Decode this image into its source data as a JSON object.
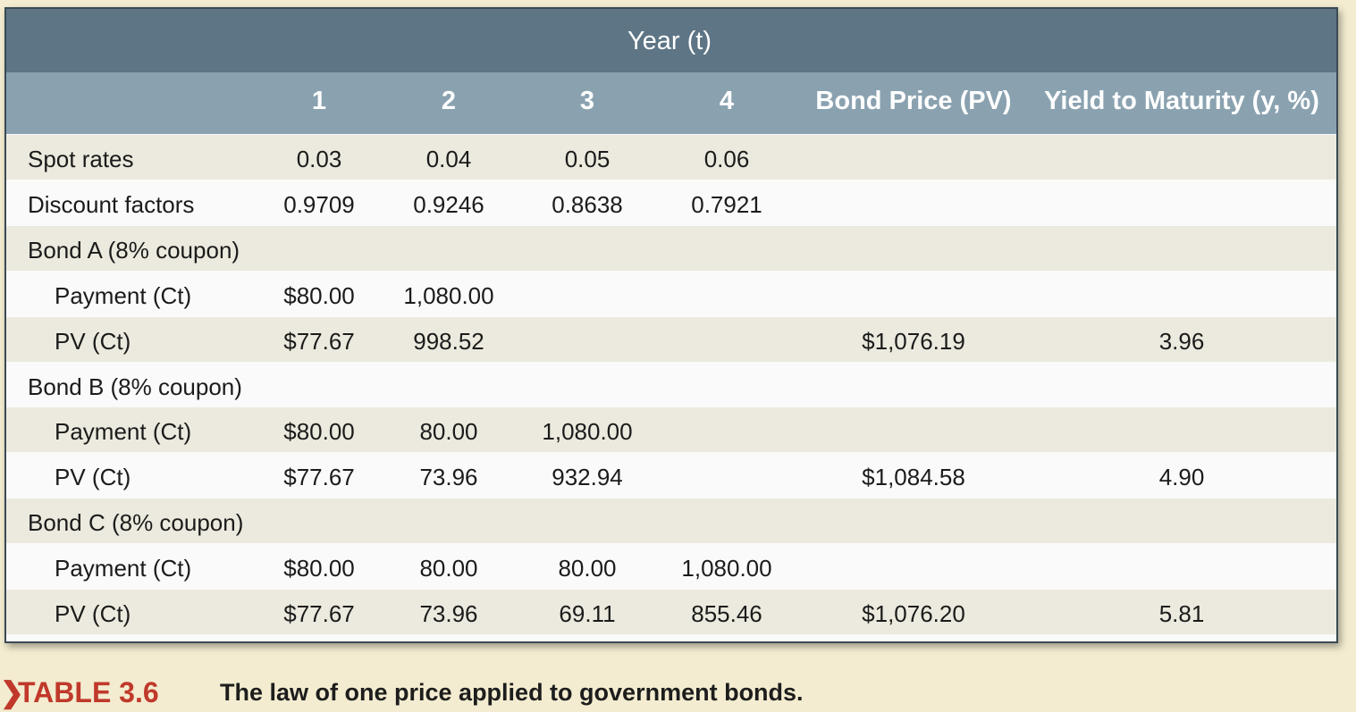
{
  "header": {
    "group_label": "Year (t)",
    "columns": [
      "1",
      "2",
      "3",
      "4",
      "Bond Price (PV)",
      "Yield to Maturity (y, %)"
    ]
  },
  "rows": [
    {
      "label": "Spot rates",
      "indent": false,
      "cells": [
        "0.03",
        "0.04",
        "0.05",
        "0.06",
        "",
        ""
      ]
    },
    {
      "label": "Discount factors",
      "indent": false,
      "cells": [
        "0.9709",
        "0.9246",
        "0.8638",
        "0.7921",
        "",
        ""
      ]
    },
    {
      "label": "Bond A (8% coupon)",
      "indent": false,
      "cells": [
        "",
        "",
        "",
        "",
        "",
        ""
      ]
    },
    {
      "label": "Payment (Ct)",
      "indent": true,
      "cells": [
        "$80.00",
        "1,080.00",
        "",
        "",
        "",
        ""
      ]
    },
    {
      "label": "PV (Ct)",
      "indent": true,
      "cells": [
        "$77.67",
        "998.52",
        "",
        "",
        "$1,076.19",
        "3.96"
      ]
    },
    {
      "label": "Bond B (8% coupon)",
      "indent": false,
      "cells": [
        "",
        "",
        "",
        "",
        "",
        ""
      ]
    },
    {
      "label": "Payment (Ct)",
      "indent": true,
      "cells": [
        "$80.00",
        "80.00",
        "1,080.00",
        "",
        "",
        ""
      ]
    },
    {
      "label": "PV (Ct)",
      "indent": true,
      "cells": [
        "$77.67",
        "73.96",
        "932.94",
        "",
        "$1,084.58",
        "4.90"
      ]
    },
    {
      "label": "Bond C (8% coupon)",
      "indent": false,
      "cells": [
        "",
        "",
        "",
        "",
        "",
        ""
      ]
    },
    {
      "label": "Payment (Ct)",
      "indent": true,
      "cells": [
        "$80.00",
        "80.00",
        "80.00",
        "1,080.00",
        "",
        ""
      ]
    },
    {
      "label": "PV (Ct)",
      "indent": true,
      "cells": [
        "$77.67",
        "73.96",
        "69.11",
        "855.46",
        "$1,076.20",
        "5.81"
      ]
    }
  ],
  "caption": {
    "marker": "❯",
    "table_number": "TABLE 3.6",
    "text": "The law of one price applied to government bonds."
  },
  "colors": {
    "page_background": "#f3ecd0",
    "header_dark": "#5d7585",
    "header_light": "#8aa2b0",
    "row_shade": "#eceade",
    "caption_accent": "#c0392b"
  }
}
